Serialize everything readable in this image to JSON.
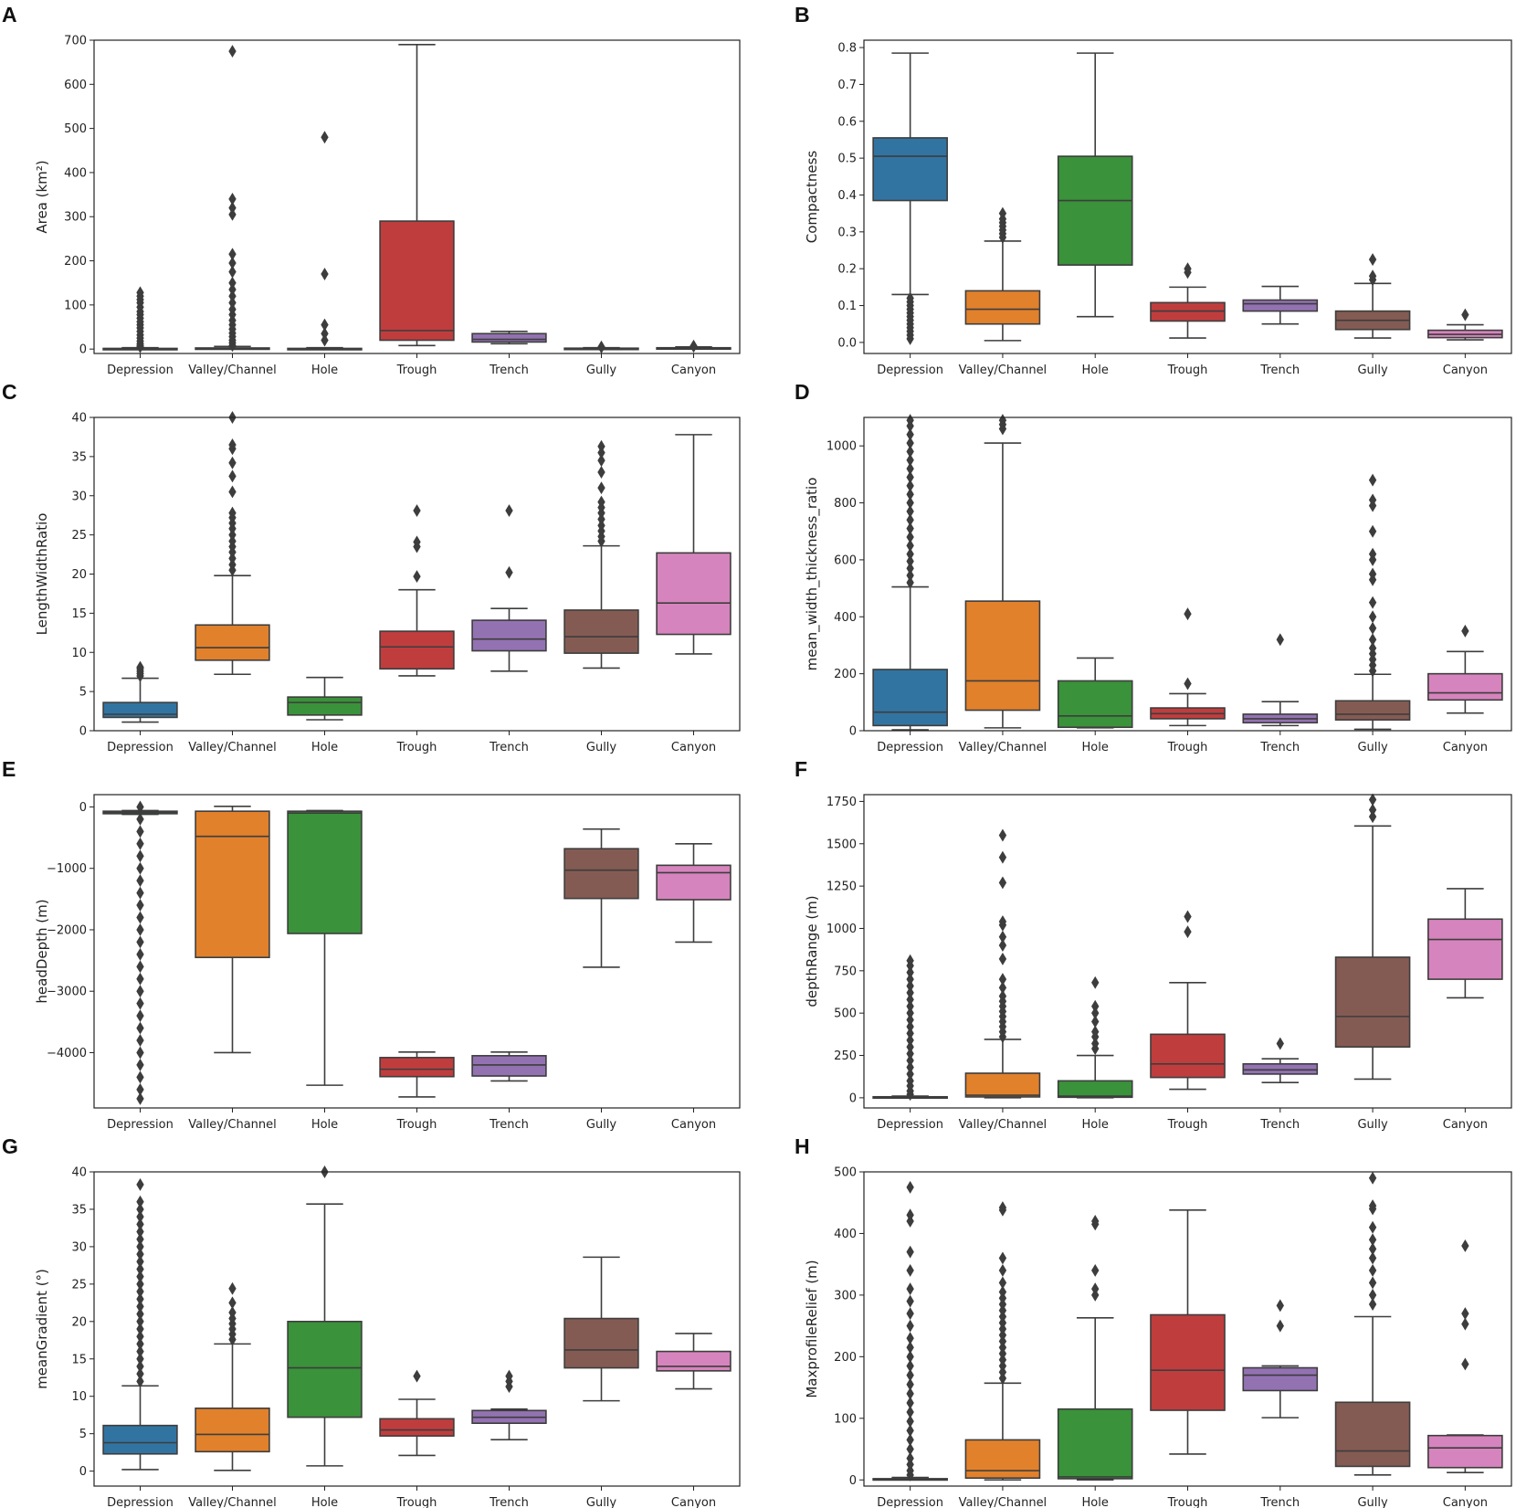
{
  "figure": {
    "categories": [
      "Depression",
      "Valley/Channel",
      "Hole",
      "Trough",
      "Trench",
      "Gully",
      "Canyon"
    ],
    "colors": [
      "#3274a1",
      "#e1812c",
      "#3a923a",
      "#c03d3e",
      "#9372b2",
      "#845b53",
      "#d684bd"
    ]
  },
  "chart_data": [
    {
      "panel": "A",
      "type": "box",
      "ylabel": "Area (km²)",
      "ylim": [
        -10,
        700
      ],
      "yticks": [
        0,
        100,
        200,
        300,
        400,
        500,
        600,
        700
      ],
      "yticklabels": [
        "0",
        "100",
        "200",
        "300",
        "400",
        "500",
        "600",
        "700"
      ],
      "boxes": [
        {
          "whislo": 0,
          "q1": 0.3,
          "med": 0.8,
          "q3": 1.5,
          "whishi": 3,
          "fliers": [
            5,
            8,
            12,
            18,
            25,
            32,
            40,
            48,
            55,
            62,
            70,
            78,
            85,
            95,
            105,
            112,
            120,
            128
          ]
        },
        {
          "whislo": 0,
          "q1": 0.5,
          "med": 1.2,
          "q3": 2.5,
          "whishi": 6,
          "fliers": [
            8,
            14,
            20,
            28,
            36,
            45,
            55,
            65,
            78,
            90,
            105,
            120,
            135,
            150,
            175,
            195,
            215,
            305,
            320,
            340,
            675
          ]
        },
        {
          "whislo": 0,
          "q1": 0.3,
          "med": 0.8,
          "q3": 1.5,
          "whishi": 3,
          "fliers": [
            20,
            35,
            55,
            170,
            480
          ]
        },
        {
          "whislo": 8,
          "q1": 20,
          "med": 42,
          "q3": 290,
          "whishi": 690,
          "fliers": []
        },
        {
          "whislo": 12,
          "q1": 16,
          "med": 22,
          "q3": 35,
          "whishi": 40,
          "fliers": []
        },
        {
          "whislo": 0,
          "q1": 0.5,
          "med": 1,
          "q3": 2,
          "whishi": 3,
          "fliers": [
            4,
            5
          ]
        },
        {
          "whislo": 0,
          "q1": 0.8,
          "med": 1.5,
          "q3": 3,
          "whishi": 5,
          "fliers": [
            6,
            7
          ]
        }
      ]
    },
    {
      "panel": "B",
      "type": "box",
      "ylabel": "Compactness",
      "ylim": [
        -0.03,
        0.82
      ],
      "yticks": [
        0,
        0.1,
        0.2,
        0.3,
        0.4,
        0.5,
        0.6,
        0.7,
        0.8
      ],
      "yticklabels": [
        "0.0",
        "0.1",
        "0.2",
        "0.3",
        "0.4",
        "0.5",
        "0.6",
        "0.7",
        "0.8"
      ],
      "boxes": [
        {
          "whislo": 0.13,
          "q1": 0.385,
          "med": 0.505,
          "q3": 0.555,
          "whishi": 0.785,
          "fliers": [
            0.01,
            0.02,
            0.03,
            0.04,
            0.05,
            0.06,
            0.07,
            0.08,
            0.09,
            0.1,
            0.11,
            0.12
          ]
        },
        {
          "whislo": 0.005,
          "q1": 0.05,
          "med": 0.09,
          "q3": 0.14,
          "whishi": 0.275,
          "fliers": [
            0.285,
            0.295,
            0.305,
            0.315,
            0.325,
            0.335,
            0.35
          ]
        },
        {
          "whislo": 0.07,
          "q1": 0.21,
          "med": 0.385,
          "q3": 0.505,
          "whishi": 0.785,
          "fliers": []
        },
        {
          "whislo": 0.012,
          "q1": 0.058,
          "med": 0.085,
          "q3": 0.108,
          "whishi": 0.15,
          "fliers": [
            0.19,
            0.2
          ]
        },
        {
          "whislo": 0.05,
          "q1": 0.085,
          "med": 0.105,
          "q3": 0.115,
          "whishi": 0.152,
          "fliers": []
        },
        {
          "whislo": 0.012,
          "q1": 0.035,
          "med": 0.06,
          "q3": 0.085,
          "whishi": 0.16,
          "fliers": [
            0.17,
            0.18,
            0.225
          ]
        },
        {
          "whislo": 0.007,
          "q1": 0.013,
          "med": 0.022,
          "q3": 0.033,
          "whishi": 0.048,
          "fliers": [
            0.075
          ]
        }
      ]
    },
    {
      "panel": "C",
      "type": "box",
      "ylabel": "LengthWidthRatio",
      "ylim": [
        0,
        40
      ],
      "yticks": [
        0,
        5,
        10,
        15,
        20,
        25,
        30,
        35,
        40
      ],
      "yticklabels": [
        "0",
        "5",
        "10",
        "15",
        "20",
        "25",
        "30",
        "35",
        "40"
      ],
      "boxes": [
        {
          "whislo": 1.1,
          "q1": 1.7,
          "med": 2.1,
          "q3": 3.6,
          "whishi": 6.7,
          "fliers": [
            7.0,
            7.3,
            7.6,
            7.9,
            8.1
          ]
        },
        {
          "whislo": 7.2,
          "q1": 9.0,
          "med": 10.6,
          "q3": 13.5,
          "whishi": 19.8,
          "fliers": [
            20.5,
            21.2,
            22,
            22.8,
            23.5,
            24.2,
            25,
            25.8,
            26.5,
            27.2,
            27.8,
            30.5,
            32.5,
            34.2,
            36,
            36.5,
            40
          ]
        },
        {
          "whislo": 1.4,
          "q1": 2.0,
          "med": 3.6,
          "q3": 4.3,
          "whishi": 6.8,
          "fliers": []
        },
        {
          "whislo": 7.0,
          "q1": 7.9,
          "med": 10.7,
          "q3": 12.7,
          "whishi": 18.0,
          "fliers": [
            19.7,
            23.5,
            24.1,
            28.1
          ]
        },
        {
          "whislo": 7.6,
          "q1": 10.2,
          "med": 11.7,
          "q3": 14.1,
          "whishi": 15.6,
          "fliers": [
            20.2,
            28.1
          ]
        },
        {
          "whislo": 8.0,
          "q1": 9.9,
          "med": 12.0,
          "q3": 15.4,
          "whishi": 23.6,
          "fliers": [
            24.2,
            24.8,
            25.5,
            26.2,
            27,
            27.8,
            28.5,
            29.2,
            31,
            33,
            34.5,
            35.5,
            36.3
          ]
        },
        {
          "whislo": 9.8,
          "q1": 12.3,
          "med": 16.3,
          "q3": 22.7,
          "whishi": 37.8,
          "fliers": []
        }
      ]
    },
    {
      "panel": "D",
      "type": "box",
      "ylabel": "mean_width_thickness_ratio",
      "ylim": [
        0,
        1100
      ],
      "yticks": [
        0,
        200,
        400,
        600,
        800,
        1000
      ],
      "yticklabels": [
        "0",
        "200",
        "400",
        "600",
        "800",
        "1000"
      ],
      "boxes": [
        {
          "whislo": 3,
          "q1": 18,
          "med": 65,
          "q3": 215,
          "whishi": 505,
          "fliers": [
            520,
            545,
            570,
            595,
            620,
            650,
            680,
            710,
            740,
            770,
            800,
            830,
            860,
            890,
            920,
            950,
            980,
            1010,
            1040,
            1070,
            1090
          ]
        },
        {
          "whislo": 10,
          "q1": 72,
          "med": 175,
          "q3": 455,
          "whishi": 1010,
          "fliers": [
            1060,
            1075,
            1090
          ]
        },
        {
          "whislo": 10,
          "q1": 12,
          "med": 52,
          "q3": 175,
          "whishi": 255,
          "fliers": []
        },
        {
          "whislo": 18,
          "q1": 42,
          "med": 60,
          "q3": 80,
          "whishi": 130,
          "fliers": [
            165,
            410
          ]
        },
        {
          "whislo": 18,
          "q1": 28,
          "med": 42,
          "q3": 58,
          "whishi": 102,
          "fliers": [
            320
          ]
        },
        {
          "whislo": 5,
          "q1": 38,
          "med": 58,
          "q3": 105,
          "whishi": 198,
          "fliers": [
            210,
            230,
            250,
            270,
            290,
            320,
            360,
            400,
            450,
            530,
            550,
            600,
            620,
            700,
            790,
            810,
            880
          ]
        },
        {
          "whislo": 62,
          "q1": 108,
          "med": 133,
          "q3": 200,
          "whishi": 278,
          "fliers": [
            350
          ]
        }
      ]
    },
    {
      "panel": "E",
      "type": "box",
      "ylabel": "headDepth (m)",
      "ylim": [
        -4900,
        200
      ],
      "yticks": [
        0,
        -1000,
        -2000,
        -3000,
        -4000
      ],
      "yticklabels": [
        "0",
        "−1000",
        "−2000",
        "−3000",
        "−4000"
      ],
      "boxes": [
        {
          "whislo": -120,
          "q1": -110,
          "med": -90,
          "q3": -70,
          "whishi": -60,
          "fliers": [
            0,
            -200,
            -400,
            -600,
            -800,
            -1000,
            -1200,
            -1400,
            -1600,
            -1800,
            -2000,
            -2200,
            -2400,
            -2600,
            -2800,
            -3000,
            -3200,
            -3400,
            -3600,
            -3800,
            -4000,
            -4200,
            -4400,
            -4600,
            -4750
          ]
        },
        {
          "whislo": -4000,
          "q1": -2450,
          "med": -480,
          "q3": -70,
          "whishi": 10,
          "fliers": []
        },
        {
          "whislo": -4530,
          "q1": -2060,
          "med": -100,
          "q3": -70,
          "whishi": -60,
          "fliers": []
        },
        {
          "whislo": -4720,
          "q1": -4390,
          "med": -4270,
          "q3": -4080,
          "whishi": -3990,
          "fliers": []
        },
        {
          "whislo": -4460,
          "q1": -4380,
          "med": -4200,
          "q3": -4050,
          "whishi": -3990,
          "fliers": []
        },
        {
          "whislo": -2610,
          "q1": -1490,
          "med": -1030,
          "q3": -680,
          "whishi": -360,
          "fliers": []
        },
        {
          "whislo": -2200,
          "q1": -1510,
          "med": -1070,
          "q3": -950,
          "whishi": -600,
          "fliers": []
        }
      ]
    },
    {
      "panel": "F",
      "type": "box",
      "ylabel": "depthRange (m)",
      "ylim": [
        -60,
        1790
      ],
      "yticks": [
        0,
        250,
        500,
        750,
        1000,
        1250,
        1500,
        1750
      ],
      "yticklabels": [
        "0",
        "250",
        "500",
        "750",
        "1000",
        "1250",
        "1500",
        "1750"
      ],
      "boxes": [
        {
          "whislo": 0,
          "q1": 2,
          "med": 4,
          "q3": 6,
          "whishi": 10,
          "fliers": [
            20,
            40,
            70,
            100,
            140,
            180,
            220,
            260,
            300,
            340,
            380,
            420,
            460,
            500,
            540,
            580,
            620,
            660,
            700,
            740,
            780,
            810
          ]
        },
        {
          "whislo": 0,
          "q1": 5,
          "med": 15,
          "q3": 145,
          "whishi": 345,
          "fliers": [
            360,
            390,
            420,
            450,
            480,
            510,
            540,
            570,
            600,
            650,
            700,
            820,
            900,
            950,
            1020,
            1040,
            1270,
            1420,
            1550
          ]
        },
        {
          "whislo": 0,
          "q1": 3,
          "med": 10,
          "q3": 100,
          "whishi": 250,
          "fliers": [
            290,
            320,
            360,
            390,
            450,
            500,
            540,
            680
          ]
        },
        {
          "whislo": 50,
          "q1": 120,
          "med": 200,
          "q3": 375,
          "whishi": 680,
          "fliers": [
            980,
            1070
          ]
        },
        {
          "whislo": 90,
          "q1": 140,
          "med": 165,
          "q3": 200,
          "whishi": 230,
          "fliers": [
            320
          ]
        },
        {
          "whislo": 110,
          "q1": 300,
          "med": 480,
          "q3": 830,
          "whishi": 1605,
          "fliers": [
            1660,
            1700,
            1760
          ]
        },
        {
          "whislo": 590,
          "q1": 700,
          "med": 935,
          "q3": 1055,
          "whishi": 1235,
          "fliers": []
        }
      ]
    },
    {
      "panel": "G",
      "type": "box",
      "ylabel": "meanGradient (°)",
      "ylim": [
        -2,
        40
      ],
      "yticks": [
        0,
        5,
        10,
        15,
        20,
        25,
        30,
        35,
        40
      ],
      "yticklabels": [
        "0",
        "5",
        "10",
        "15",
        "20",
        "25",
        "30",
        "35",
        "40"
      ],
      "boxes": [
        {
          "whislo": 0.2,
          "q1": 2.3,
          "med": 3.8,
          "q3": 6.1,
          "whishi": 11.4,
          "fliers": [
            12,
            13,
            14,
            15,
            16,
            17,
            18,
            19,
            20,
            21,
            22,
            23,
            24,
            25,
            26,
            27,
            28,
            29,
            30,
            31,
            32,
            33,
            34,
            35,
            36,
            38.3
          ]
        },
        {
          "whislo": 0.1,
          "q1": 2.6,
          "med": 4.9,
          "q3": 8.4,
          "whishi": 17.0,
          "fliers": [
            17.6,
            18.3,
            19,
            19.7,
            20.4,
            21.2,
            22.5,
            24.4
          ]
        },
        {
          "whislo": 0.7,
          "q1": 7.2,
          "med": 13.8,
          "q3": 20.0,
          "whishi": 35.7,
          "fliers": [
            40
          ]
        },
        {
          "whislo": 2.1,
          "q1": 4.7,
          "med": 5.5,
          "q3": 7.0,
          "whishi": 9.6,
          "fliers": [
            12.7
          ]
        },
        {
          "whislo": 4.2,
          "q1": 6.4,
          "med": 7.2,
          "q3": 8.1,
          "whishi": 8.3,
          "fliers": [
            11.3,
            12.0,
            12.7
          ]
        },
        {
          "whislo": 9.4,
          "q1": 13.8,
          "med": 16.2,
          "q3": 20.4,
          "whishi": 28.6,
          "fliers": []
        },
        {
          "whislo": 11.0,
          "q1": 13.4,
          "med": 14.0,
          "q3": 16.0,
          "whishi": 18.4,
          "fliers": []
        }
      ]
    },
    {
      "panel": "H",
      "type": "box",
      "ylabel": "MaxprofileRelief (m)",
      "ylim": [
        -10,
        500
      ],
      "yticks": [
        0,
        100,
        200,
        300,
        400,
        500
      ],
      "yticklabels": [
        "0",
        "100",
        "200",
        "300",
        "400",
        "500"
      ],
      "boxes": [
        {
          "whislo": 0,
          "q1": 0.5,
          "med": 1,
          "q3": 2,
          "whishi": 4,
          "fliers": [
            8,
            15,
            25,
            35,
            50,
            65,
            80,
            95,
            110,
            125,
            140,
            155,
            170,
            185,
            200,
            215,
            230,
            250,
            270,
            290,
            310,
            340,
            370,
            420,
            430,
            475
          ]
        },
        {
          "whislo": 0,
          "q1": 3,
          "med": 15,
          "q3": 65,
          "whishi": 157,
          "fliers": [
            165,
            175,
            185,
            195,
            205,
            215,
            225,
            235,
            245,
            255,
            265,
            275,
            285,
            295,
            305,
            320,
            340,
            360,
            438,
            442
          ]
        },
        {
          "whislo": 0,
          "q1": 2,
          "med": 5,
          "q3": 115,
          "whishi": 263,
          "fliers": [
            300,
            310,
            340,
            415,
            420
          ]
        },
        {
          "whislo": 42,
          "q1": 113,
          "med": 178,
          "q3": 268,
          "whishi": 438,
          "fliers": []
        },
        {
          "whislo": 101,
          "q1": 145,
          "med": 170,
          "q3": 182,
          "whishi": 185,
          "fliers": [
            250,
            283
          ]
        },
        {
          "whislo": 8,
          "q1": 22,
          "med": 47,
          "q3": 126,
          "whishi": 265,
          "fliers": [
            285,
            300,
            320,
            340,
            360,
            375,
            390,
            410,
            440,
            445,
            490
          ]
        },
        {
          "whislo": 12,
          "q1": 20,
          "med": 52,
          "q3": 72,
          "whishi": 73,
          "fliers": [
            188,
            253,
            270,
            380
          ]
        }
      ]
    }
  ]
}
